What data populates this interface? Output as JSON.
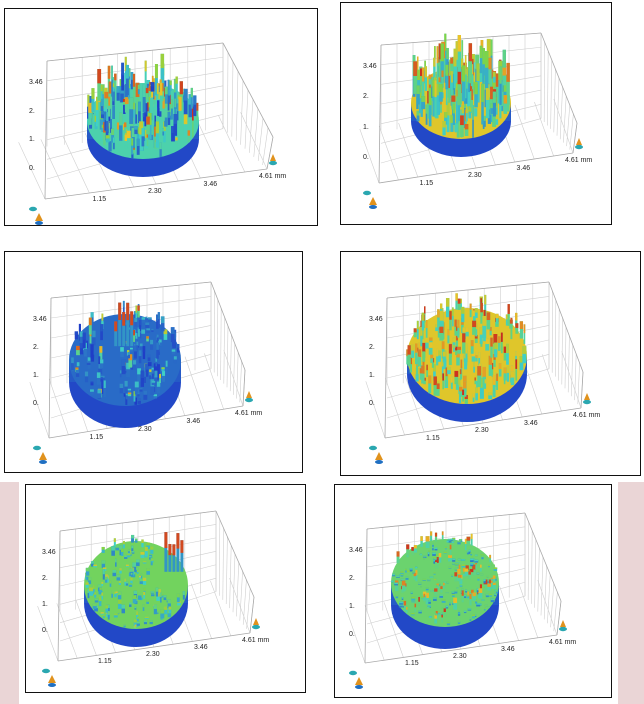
{
  "panels": [
    {
      "z_ticks": [
        "3.46",
        "2.",
        "1.",
        "0."
      ],
      "x_ticks": [
        "1.15",
        "2.30",
        "3.46",
        "4.61 mm"
      ],
      "style": "dense-spikes"
    },
    {
      "z_ticks": [
        "3.46",
        "2.",
        "1.",
        "0."
      ],
      "x_ticks": [
        "1.15",
        "2.30",
        "3.46",
        "4.61 mm"
      ],
      "style": "tall-red-spikes"
    },
    {
      "z_ticks": [
        "3.46",
        "2.",
        "1.",
        "0."
      ],
      "x_ticks": [
        "1.15",
        "2.30",
        "3.46",
        "4.61 mm"
      ],
      "style": "blue-broken-disc"
    },
    {
      "z_ticks": [
        "3.46",
        "2.",
        "1.",
        "0."
      ],
      "x_ticks": [
        "1.15",
        "2.30",
        "3.46",
        "4.61 mm"
      ],
      "style": "red-full-disc"
    },
    {
      "z_ticks": [
        "3.46",
        "2.",
        "1.",
        "0."
      ],
      "x_ticks": [
        "1.15",
        "2.30",
        "3.46",
        "4.61 mm"
      ],
      "style": "green-fragmented-disc"
    },
    {
      "z_ticks": [
        "3.46",
        "2.",
        "1.",
        "0."
      ],
      "x_ticks": [
        "1.15",
        "2.30",
        "3.46",
        "4.61 mm"
      ],
      "style": "diagonal-ridges"
    }
  ],
  "colors": {
    "background": "#ffffff",
    "side_band": "#ead5d6",
    "surface_low": "#1f3cc7",
    "surface_mid": "#3fd0c6",
    "surface_green": "#7fd444",
    "surface_high": "#cc2a1d"
  }
}
